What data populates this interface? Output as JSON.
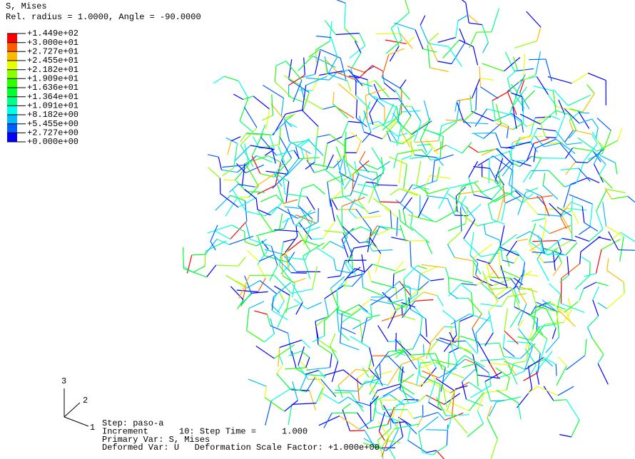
{
  "header": {
    "variable": "S, Mises",
    "options": "Rel. radius = 1.0000, Angle = -90.0000"
  },
  "legend": {
    "labels": [
      "+1.449e+02",
      "+3.000e+01",
      "+2.727e+01",
      "+2.455e+01",
      "+2.182e+01",
      "+1.909e+01",
      "+1.636e+01",
      "+1.364e+01",
      "+1.091e+01",
      "+8.182e+00",
      "+5.455e+00",
      "+2.727e+00",
      "+0.000e+00"
    ],
    "colors": [
      "#ff0000",
      "#ff5d00",
      "#ffb900",
      "#e8ff00",
      "#8bff00",
      "#2eff00",
      "#00ff2e",
      "#00ff8b",
      "#00ffe8",
      "#00b9ff",
      "#005dff",
      "#0000ff"
    ]
  },
  "triad": {
    "axes": [
      "3",
      "2",
      "1"
    ]
  },
  "footer": {
    "lines": [
      "Step: paso-a",
      "Increment      10: Step Time =     1.000",
      "Primary Var: S, Mises",
      "Deformed Var: U   Deformation Scale Factor: +1.000e+00"
    ]
  }
}
